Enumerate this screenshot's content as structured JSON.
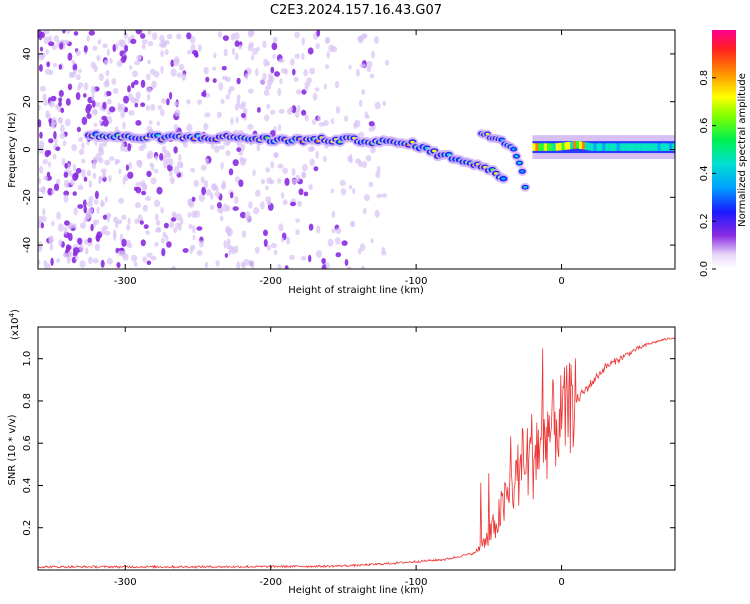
{
  "title": "C2E3.2024.157.16.43.G07",
  "colorbar": {
    "label": "Normalized spectral amplitude",
    "ticks": [
      "0.0",
      "0.2",
      "0.4",
      "0.6",
      "0.8"
    ],
    "range": [
      0,
      1
    ]
  },
  "chart_data": [
    {
      "type": "heatmap",
      "title": "C2E3.2024.157.16.43.G07",
      "xlabel": "Height of straight line (km)",
      "ylabel": "Frequency (Hz)",
      "xlim": [
        -360,
        78
      ],
      "ylim": [
        -50,
        50
      ],
      "xticks": [
        "-300",
        "-200",
        "-100",
        "0"
      ],
      "yticks": [
        "-40",
        "-20",
        "0",
        "20",
        "40"
      ],
      "z_label": "Normalized spectral amplitude",
      "z_range": [
        0,
        1
      ],
      "main_track": [
        {
          "x": -325,
          "y": 6
        },
        {
          "x": -300,
          "y": 5
        },
        {
          "x": -270,
          "y": 5
        },
        {
          "x": -240,
          "y": 5
        },
        {
          "x": -220,
          "y": 5
        },
        {
          "x": -200,
          "y": 4
        },
        {
          "x": -180,
          "y": 4
        },
        {
          "x": -160,
          "y": 4
        },
        {
          "x": -140,
          "y": 4
        },
        {
          "x": -120,
          "y": 3
        },
        {
          "x": -100,
          "y": 2
        },
        {
          "x": -85,
          "y": -2
        },
        {
          "x": -70,
          "y": -4
        },
        {
          "x": -55,
          "y": -7
        },
        {
          "x": -45,
          "y": -10
        },
        {
          "x": -40,
          "y": -12
        }
      ],
      "secondary_track": [
        {
          "x": -55,
          "y": 7
        },
        {
          "x": -45,
          "y": 5
        },
        {
          "x": -35,
          "y": 2
        },
        {
          "x": -28,
          "y": -6
        },
        {
          "x": -24,
          "y": -18
        }
      ],
      "tail_band": [
        {
          "x": -20,
          "y": 1
        },
        {
          "x": -5,
          "y": 1
        },
        {
          "x": 10,
          "y": 2
        },
        {
          "x": 20,
          "y": 1
        },
        {
          "x": 40,
          "y": 1
        },
        {
          "x": 60,
          "y": 1
        },
        {
          "x": 78,
          "y": 1
        }
      ]
    },
    {
      "type": "line",
      "xlabel": "Height of straight line (km)",
      "ylabel": "SNR (10 * v/v)",
      "y_multiplier": "(x10",
      "y_multiplier_exp": "4",
      "xlim": [
        -360,
        78
      ],
      "ylim": [
        0,
        1.15
      ],
      "xticks": [
        "-300",
        "-200",
        "-100",
        "0"
      ],
      "yticks": [
        "0.2",
        "0.4",
        "0.6",
        "0.8",
        "1.0"
      ],
      "series": [
        {
          "color": "#ee3333",
          "x": [
            -360,
            -300,
            -250,
            -200,
            -160,
            -140,
            -120,
            -100,
            -80,
            -60,
            -50,
            -40,
            -30,
            -20,
            -10,
            0,
            10,
            20,
            30,
            40,
            50,
            60,
            70,
            78
          ],
          "y": [
            0.015,
            0.015,
            0.015,
            0.016,
            0.018,
            0.022,
            0.03,
            0.04,
            0.05,
            0.08,
            0.15,
            0.3,
            0.45,
            0.55,
            0.65,
            0.72,
            0.8,
            0.88,
            0.96,
            1.0,
            1.04,
            1.07,
            1.09,
            1.1
          ]
        }
      ]
    }
  ]
}
